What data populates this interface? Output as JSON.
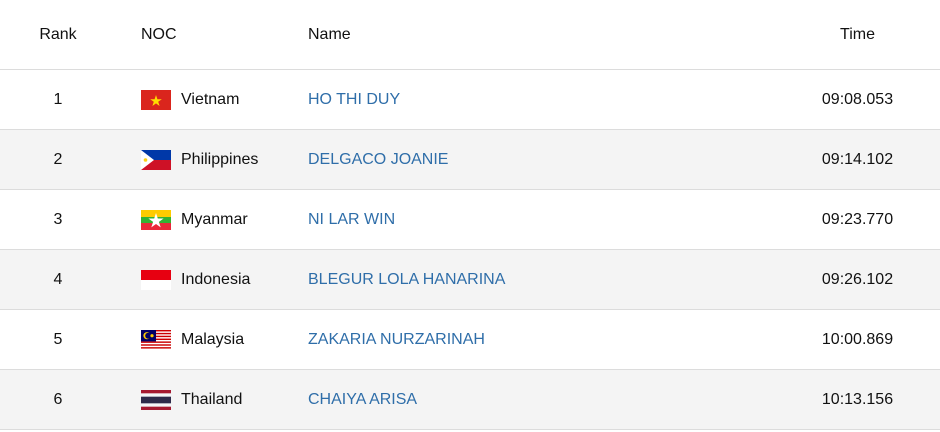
{
  "table": {
    "header": [
      "Rank",
      "NOC",
      "Name",
      "Time"
    ],
    "rows": [
      [
        1,
        "Vietnam",
        "HO THI DUY",
        "09:08.053"
      ],
      [
        2,
        "Philippines",
        "DELGACO JOANIE",
        "09:14.102"
      ],
      [
        3,
        "Myanmar",
        "NI LAR WIN",
        "09:23.770"
      ],
      [
        4,
        "Indonesia",
        "BLEGUR LOLA HANARINA",
        "09:26.102"
      ],
      [
        5,
        "Malaysia",
        "ZAKARIA NURZARINAH",
        "10:00.869"
      ],
      [
        6,
        "Thailand",
        "CHAIYA ARISA",
        "10:13.156"
      ]
    ]
  }
}
